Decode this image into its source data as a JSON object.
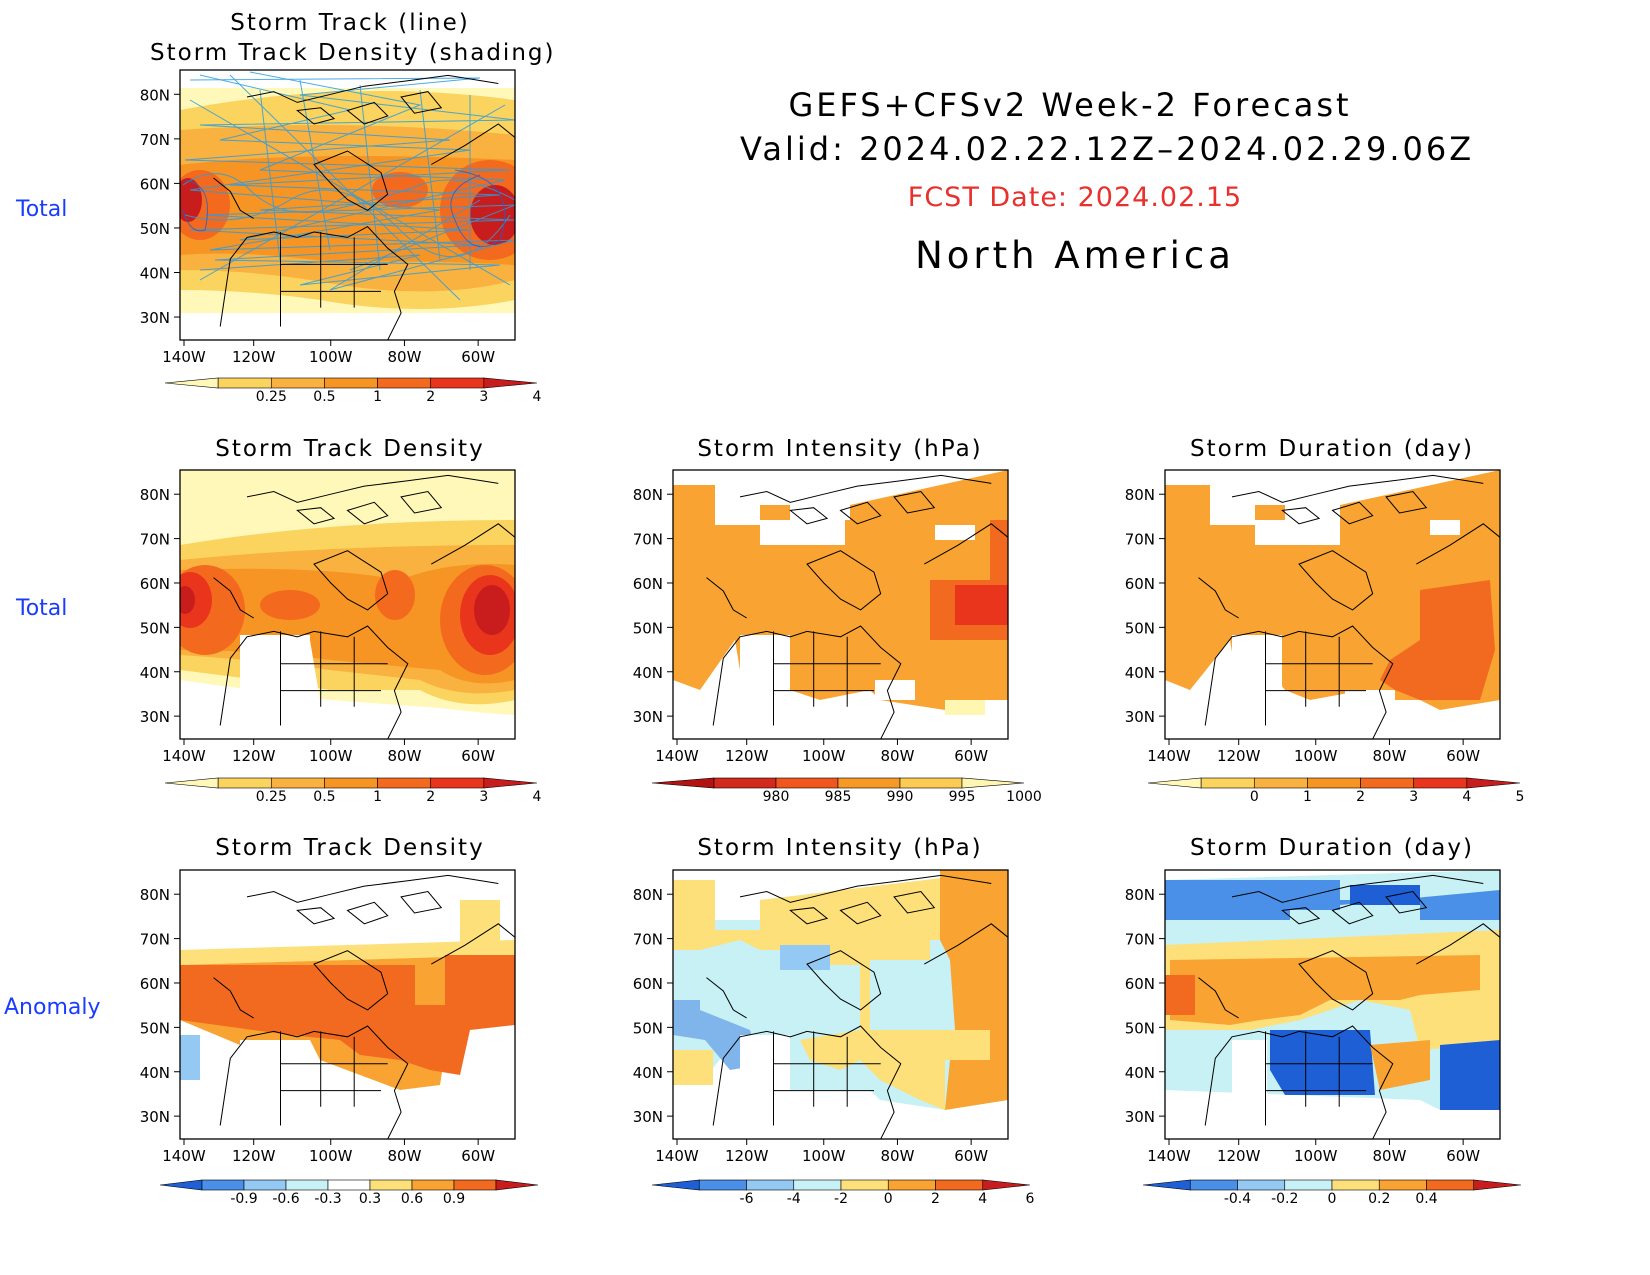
{
  "header": {
    "title_line1": "GEFS+CFSv2 Week-2 Forecast",
    "title_line2": "Valid: 2024.02.22.12Z–2024.02.29.06Z",
    "fcst_date": "FCST Date: 2024.02.15",
    "region": "North America"
  },
  "row_labels": [
    "Total",
    "Total",
    "Anomaly"
  ],
  "lat_labels": [
    "80N",
    "70N",
    "60N",
    "50N",
    "40N",
    "30N"
  ],
  "lon_labels": [
    "140W",
    "120W",
    "100W",
    "80W",
    "60W"
  ],
  "panels": [
    {
      "id": "track-line",
      "title": [
        "Storm Track (line)",
        "Storm Track Density (shading)"
      ],
      "colorbar": {
        "labels": [
          "0.25",
          "0.5",
          "1",
          "2",
          "3",
          "4"
        ],
        "colors": [
          "#fff8b8",
          "#fbd35f",
          "#f9b13f",
          "#f69424",
          "#f36a1e",
          "#e8351c",
          "#c91d1d"
        ]
      }
    },
    {
      "id": "density-total",
      "title": [
        "Storm Track Density"
      ],
      "colorbar": {
        "labels": [
          "0.25",
          "0.5",
          "1",
          "2",
          "3",
          "4"
        ],
        "colors": [
          "#fff8b8",
          "#fbd35f",
          "#f9b13f",
          "#f69424",
          "#f36a1e",
          "#e8351c",
          "#c91d1d"
        ]
      }
    },
    {
      "id": "intensity-total",
      "title": [
        "Storm Intensity (hPa)"
      ],
      "colorbar": {
        "labels": [
          "980",
          "985",
          "990",
          "995",
          "1000"
        ],
        "colors": [
          "#b31412",
          "#d22a1c",
          "#f0571f",
          "#f79a25",
          "#fbcb53",
          "#fff6b2"
        ]
      }
    },
    {
      "id": "duration-total",
      "title": [
        "Storm Duration (day)"
      ],
      "colorbar": {
        "labels": [
          "0",
          "1",
          "2",
          "3",
          "4",
          "5"
        ],
        "colors": [
          "#fff8b8",
          "#fbd35f",
          "#f9b13f",
          "#f69424",
          "#f36a1e",
          "#e8351c",
          "#c91d1d"
        ]
      }
    },
    {
      "id": "density-anom",
      "title": [
        "Storm Track Density"
      ],
      "colorbar": {
        "labels": [
          "-0.9",
          "-0.6",
          "-0.3",
          "0.3",
          "0.6",
          "0.9"
        ],
        "colors": [
          "#1e5fd6",
          "#4a90e8",
          "#93c9f2",
          "#c7f1f5",
          "#ffffff",
          "#fde07a",
          "#f9a432",
          "#f26a20",
          "#c91d1d"
        ]
      }
    },
    {
      "id": "intensity-anom",
      "title": [
        "Storm Intensity (hPa)"
      ],
      "colorbar": {
        "labels": [
          "-6",
          "-4",
          "-2",
          "0",
          "2",
          "4",
          "6"
        ],
        "colors": [
          "#1e5fd6",
          "#4a90e8",
          "#93c9f2",
          "#c7f1f5",
          "#fde07a",
          "#f9a432",
          "#f26a20",
          "#c91d1d"
        ]
      }
    },
    {
      "id": "duration-anom",
      "title": [
        "Storm Duration (day)"
      ],
      "colorbar": {
        "labels": [
          "-0.4",
          "-0.2",
          "0",
          "0.2",
          "0.4"
        ],
        "colors": [
          "#1e5fd6",
          "#4a90e8",
          "#93c9f2",
          "#c7f1f5",
          "#fde07a",
          "#f9a432",
          "#f26a20",
          "#c91d1d"
        ]
      }
    }
  ]
}
